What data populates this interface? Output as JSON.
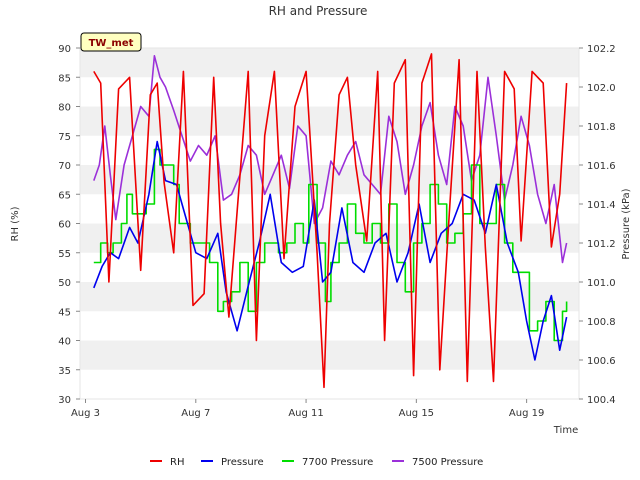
{
  "badge": {
    "text": "TW_met",
    "fill": "#ffffc0",
    "text_color": "#8b0000"
  },
  "chart_data": {
    "type": "line",
    "title": "RH and Pressure",
    "xlabel": "Time",
    "ylabel_left": "RH (%)",
    "ylabel_right": "Pressure (kPa)",
    "x_unit": "days (August)",
    "xlim": [
      2.8,
      20.9
    ],
    "ylim_left": [
      30,
      90
    ],
    "ylim_right": [
      100.4,
      102.2
    ],
    "x_ticks": [
      {
        "value": 3,
        "label": "Aug 3"
      },
      {
        "value": 7,
        "label": "Aug 7"
      },
      {
        "value": 11,
        "label": "Aug 11"
      },
      {
        "value": 15,
        "label": "Aug 15"
      },
      {
        "value": 19,
        "label": "Aug 19"
      }
    ],
    "y_ticks_left": [
      30,
      35,
      40,
      45,
      50,
      55,
      60,
      65,
      70,
      75,
      80,
      85,
      90
    ],
    "y_ticks_right": [
      "100.4",
      "100.6",
      "100.8",
      "101.0",
      "101.2",
      "101.4",
      "101.6",
      "101.8",
      "102.0",
      "102.2"
    ],
    "grid": "horizontal bands",
    "legend_position": "bottom",
    "series": [
      {
        "name": "RH",
        "axis": "left",
        "color": "#ee0000",
        "x": [
          3.3,
          3.55,
          3.85,
          4.2,
          4.6,
          5.0,
          5.35,
          5.6,
          5.85,
          6.2,
          6.55,
          6.9,
          7.3,
          7.65,
          7.9,
          8.2,
          8.5,
          8.9,
          9.2,
          9.5,
          9.85,
          10.2,
          10.6,
          11.0,
          11.4,
          11.65,
          11.85,
          12.2,
          12.5,
          12.8,
          13.2,
          13.6,
          13.85,
          14.2,
          14.6,
          14.9,
          15.2,
          15.55,
          15.85,
          16.2,
          16.55,
          16.85,
          17.2,
          17.5,
          17.8,
          18.2,
          18.55,
          18.8,
          19.2,
          19.6,
          19.9,
          20.2,
          20.45
        ],
        "y": [
          86,
          84,
          50,
          83,
          85,
          52,
          82,
          84,
          67,
          55,
          86,
          46,
          48,
          85,
          60,
          44,
          62,
          86,
          40,
          75,
          86,
          54,
          80,
          86,
          55,
          32,
          60,
          82,
          85,
          70,
          57,
          86,
          40,
          84,
          88,
          34,
          84,
          89,
          35,
          62,
          88,
          33,
          86,
          56,
          33,
          86,
          83,
          57,
          86,
          84,
          56,
          65,
          84
        ]
      },
      {
        "name": "Pressure",
        "axis": "right",
        "color": "#0000ee",
        "x": [
          3.3,
          3.6,
          3.9,
          4.2,
          4.6,
          4.9,
          5.3,
          5.6,
          5.9,
          6.3,
          6.7,
          7.0,
          7.4,
          7.8,
          8.1,
          8.5,
          8.9,
          9.3,
          9.7,
          10.1,
          10.5,
          10.9,
          11.3,
          11.6,
          11.9,
          12.3,
          12.7,
          13.1,
          13.5,
          13.9,
          14.3,
          14.7,
          15.1,
          15.5,
          15.9,
          16.3,
          16.7,
          17.1,
          17.5,
          17.9,
          18.3,
          18.7,
          19.0,
          19.3,
          19.6,
          19.9,
          20.2,
          20.45
        ],
        "y": [
          100.97,
          101.08,
          101.15,
          101.12,
          101.28,
          101.2,
          101.45,
          101.72,
          101.52,
          101.5,
          101.3,
          101.15,
          101.12,
          101.25,
          100.95,
          100.75,
          100.98,
          101.2,
          101.45,
          101.1,
          101.05,
          101.08,
          101.42,
          101.0,
          101.05,
          101.38,
          101.1,
          101.05,
          101.2,
          101.25,
          101.0,
          101.15,
          101.4,
          101.1,
          101.25,
          101.3,
          101.45,
          101.42,
          101.25,
          101.5,
          101.2,
          101.05,
          100.8,
          100.6,
          100.8,
          100.93,
          100.65,
          100.82
        ]
      },
      {
        "name": "7700 Pressure",
        "axis": "right",
        "color": "#00dd00",
        "x": [
          3.3,
          3.55,
          3.8,
          4.0,
          4.3,
          4.5,
          4.7,
          4.9,
          5.2,
          5.5,
          5.7,
          5.9,
          6.2,
          6.4,
          6.8,
          7.2,
          7.5,
          7.8,
          8.0,
          8.3,
          8.6,
          8.9,
          9.2,
          9.5,
          9.8,
          10.0,
          10.3,
          10.6,
          10.9,
          11.1,
          11.4,
          11.7,
          11.9,
          12.2,
          12.5,
          12.8,
          13.1,
          13.4,
          13.7,
          14.0,
          14.3,
          14.6,
          14.9,
          15.2,
          15.5,
          15.8,
          16.1,
          16.4,
          16.7,
          17.0,
          17.3,
          17.6,
          17.9,
          18.2,
          18.5,
          18.8,
          19.1,
          19.4,
          19.7,
          20.0,
          20.3,
          20.45
        ],
        "y": [
          101.1,
          101.2,
          101.15,
          101.2,
          101.3,
          101.45,
          101.35,
          101.35,
          101.4,
          101.68,
          101.6,
          101.6,
          101.5,
          101.3,
          101.2,
          101.2,
          101.1,
          100.85,
          100.9,
          100.95,
          101.1,
          100.85,
          101.1,
          101.2,
          101.2,
          101.15,
          101.2,
          101.3,
          101.2,
          101.5,
          101.2,
          100.9,
          101.1,
          101.2,
          101.4,
          101.25,
          101.2,
          101.3,
          101.2,
          101.4,
          101.1,
          100.95,
          101.2,
          101.3,
          101.5,
          101.4,
          101.2,
          101.25,
          101.35,
          101.6,
          101.3,
          101.3,
          101.5,
          101.2,
          101.05,
          101.05,
          100.75,
          100.8,
          100.9,
          100.7,
          100.85,
          100.9
        ]
      },
      {
        "name": "7500 Pressure",
        "axis": "right",
        "color": "#9b30d9",
        "x": [
          3.3,
          3.5,
          3.7,
          3.9,
          4.1,
          4.4,
          4.7,
          5.0,
          5.3,
          5.5,
          5.7,
          5.9,
          6.2,
          6.5,
          6.8,
          7.1,
          7.4,
          7.7,
          8.0,
          8.3,
          8.6,
          8.9,
          9.2,
          9.5,
          9.8,
          10.1,
          10.4,
          10.7,
          11.0,
          11.3,
          11.6,
          11.9,
          12.2,
          12.5,
          12.8,
          13.1,
          13.4,
          13.7,
          14.0,
          14.3,
          14.6,
          14.9,
          15.2,
          15.5,
          15.8,
          16.1,
          16.4,
          16.7,
          17.0,
          17.3,
          17.6,
          17.9,
          18.2,
          18.5,
          18.8,
          19.1,
          19.4,
          19.7,
          20.0,
          20.3,
          20.45
        ],
        "y": [
          101.52,
          101.6,
          101.8,
          101.55,
          101.32,
          101.6,
          101.75,
          101.9,
          101.85,
          102.16,
          102.05,
          102.0,
          101.88,
          101.75,
          101.62,
          101.7,
          101.65,
          101.75,
          101.42,
          101.45,
          101.55,
          101.7,
          101.65,
          101.45,
          101.55,
          101.65,
          101.48,
          101.8,
          101.75,
          101.3,
          101.38,
          101.62,
          101.55,
          101.65,
          101.72,
          101.55,
          101.5,
          101.45,
          101.85,
          101.72,
          101.45,
          101.6,
          101.8,
          101.92,
          101.65,
          101.5,
          101.9,
          101.8,
          101.52,
          101.65,
          102.05,
          101.75,
          101.42,
          101.6,
          101.85,
          101.7,
          101.45,
          101.3,
          101.5,
          101.1,
          101.2
        ]
      }
    ]
  }
}
